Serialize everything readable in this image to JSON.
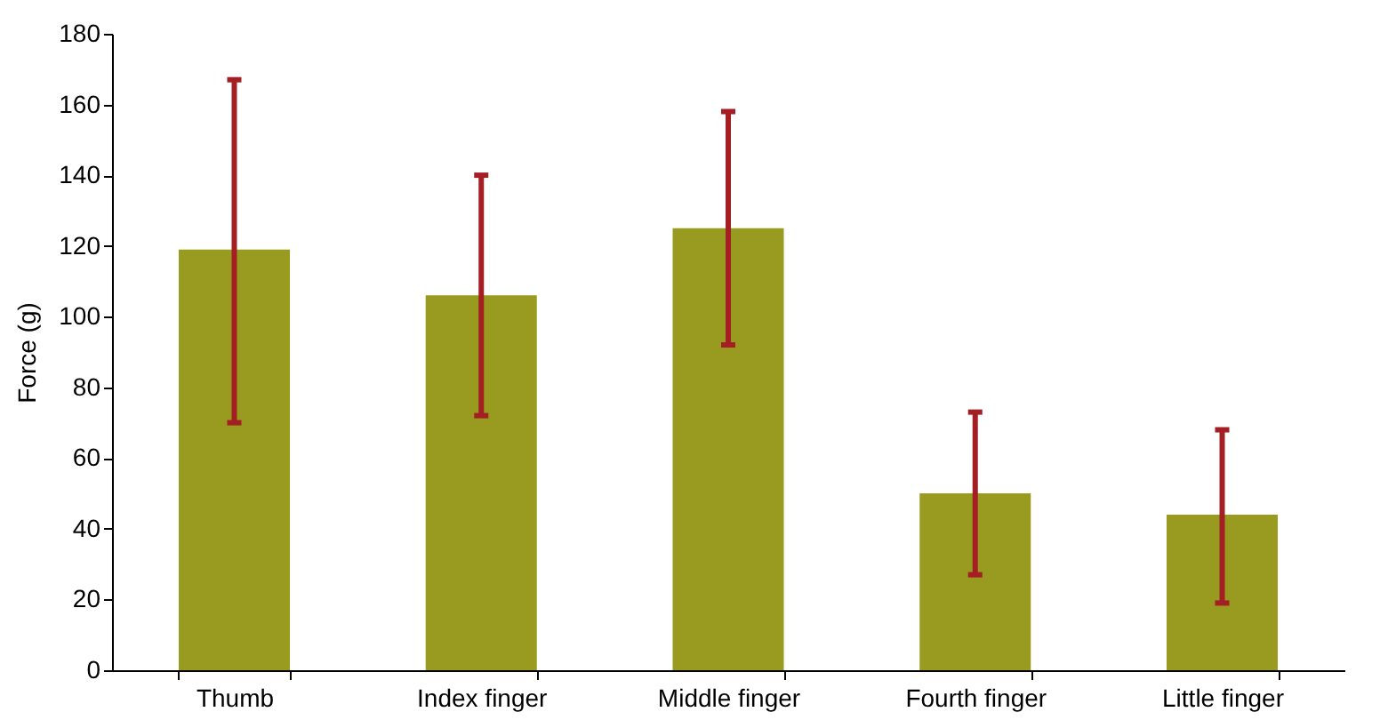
{
  "chart_data": {
    "type": "bar",
    "ylabel": "Force (g)",
    "categories": [
      "Thumb",
      "Index finger",
      "Middle finger",
      "Fourth finger",
      "Little finger"
    ],
    "values": [
      119,
      106,
      125,
      50,
      44
    ],
    "errors": [
      [
        70,
        167
      ],
      [
        72,
        140
      ],
      [
        92,
        158
      ],
      [
        27,
        73
      ],
      [
        19,
        68
      ]
    ],
    "color": "#999a20",
    "ylim": [
      0,
      180
    ],
    "yticks": [
      0,
      20,
      40,
      60,
      80,
      100,
      120,
      140,
      160,
      180
    ],
    "grid": false
  }
}
